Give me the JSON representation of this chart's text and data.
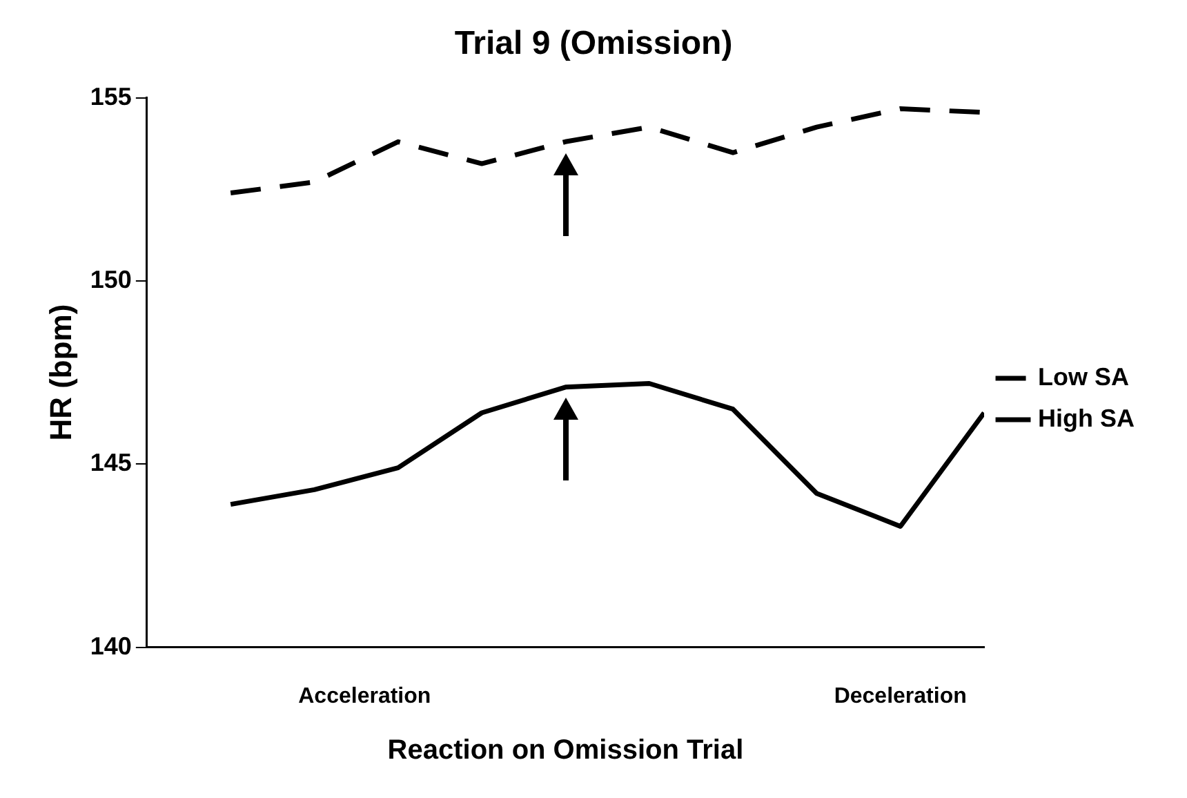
{
  "chart_data": {
    "type": "line",
    "title": "Trial 9 (Omission)",
    "xlabel": "Reaction on Omission Trial",
    "ylabel": "HR (bpm)",
    "categories": [
      null,
      null,
      null,
      null,
      null,
      null,
      null,
      null,
      null,
      null
    ],
    "ylim": [
      140,
      155
    ],
    "yticks": [
      140,
      145,
      150,
      155
    ],
    "series": [
      {
        "name": "Low SA",
        "color": "#000000",
        "line_style": "dashed",
        "values": [
          152.4,
          152.7,
          153.8,
          153.2,
          153.8,
          154.2,
          153.5,
          154.2,
          154.7,
          154.6
        ]
      },
      {
        "name": "High SA",
        "color": "#000000",
        "line_style": "solid",
        "values": [
          143.9,
          144.3,
          144.9,
          146.4,
          147.1,
          147.2,
          146.5,
          144.2,
          143.3,
          146.4
        ]
      }
    ],
    "annotations": [
      "Acceleration",
      "Deceleration"
    ],
    "legend": "right",
    "marker": "none",
    "grid": false
  }
}
